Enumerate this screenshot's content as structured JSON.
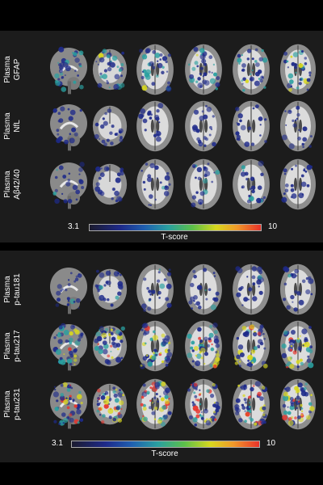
{
  "figure": {
    "top_panel": {
      "rows": [
        {
          "label_line1": "Plasma",
          "label_line2": "GFAP",
          "intensity": 0.55
        },
        {
          "label_line1": "Plasma",
          "label_line2": "NfL",
          "intensity": 0.25
        },
        {
          "label_line1": "Plasma",
          "label_line2": "Aβ42/40",
          "intensity": 0.3
        }
      ],
      "colorbar": {
        "min_label": "3.1",
        "max_label": "10",
        "title": "T-score"
      }
    },
    "bottom_panel": {
      "rows": [
        {
          "label_line1": "Plasma",
          "label_line2": "p-tau181",
          "intensity": 0.3
        },
        {
          "label_line1": "Plasma",
          "label_line2": "p-tau217",
          "intensity": 0.85
        },
        {
          "label_line1": "Plasma",
          "label_line2": "p-tau231",
          "intensity": 0.9
        }
      ],
      "colorbar": {
        "min_label": "3.1",
        "max_label": "10",
        "title": "T-score"
      }
    },
    "views": [
      "sagittal",
      "coronal",
      "axial",
      "axial",
      "axial",
      "axial"
    ],
    "colors": {
      "background": "#000000",
      "panel": "#1c1c1c",
      "overlay_low": "#1e2a8a",
      "overlay_mid": "#2aa0a0",
      "overlay_high": "#d8d81e",
      "overlay_peak": "#e8322a"
    }
  }
}
